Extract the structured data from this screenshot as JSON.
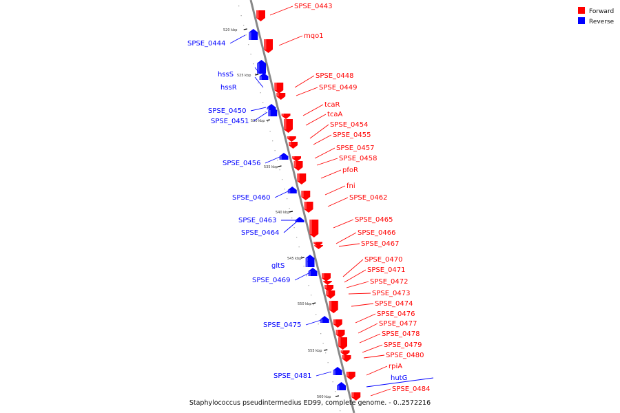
{
  "caption": "Staphylococcus pseudintermedius ED99, complete genome. - 0..2572216",
  "legend": [
    {
      "label": "Forward",
      "color": "#ff0000"
    },
    {
      "label": "Reverse",
      "color": "#0000ff"
    }
  ],
  "colors": {
    "forward": "#ff0000",
    "reverse": "#0000ff",
    "backbone": "#888888"
  },
  "ticks": [
    "520 kbp",
    "525 kbp",
    "530 kbp",
    "535 kbp",
    "540 kbp",
    "545 kbp",
    "550 kbp",
    "555 kbp",
    "560 kbp"
  ],
  "genes": [
    {
      "label": "SPSE_0443",
      "strand": "forward"
    },
    {
      "label": "mqo1",
      "strand": "forward"
    },
    {
      "label": "SPSE_0444",
      "strand": "reverse"
    },
    {
      "label": "hssS",
      "strand": "reverse"
    },
    {
      "label": "hssR",
      "strand": "reverse"
    },
    {
      "label": "SPSE_0448",
      "strand": "forward"
    },
    {
      "label": "SPSE_0449",
      "strand": "forward"
    },
    {
      "label": "tcaR",
      "strand": "forward"
    },
    {
      "label": "SPSE_0450",
      "strand": "reverse"
    },
    {
      "label": "SPSE_0451",
      "strand": "reverse"
    },
    {
      "label": "tcaA",
      "strand": "forward"
    },
    {
      "label": "SPSE_0454",
      "strand": "forward"
    },
    {
      "label": "SPSE_0455",
      "strand": "forward"
    },
    {
      "label": "SPSE_0457",
      "strand": "forward"
    },
    {
      "label": "SPSE_0458",
      "strand": "forward"
    },
    {
      "label": "SPSE_0456",
      "strand": "reverse"
    },
    {
      "label": "pfoR",
      "strand": "forward"
    },
    {
      "label": "fni",
      "strand": "forward"
    },
    {
      "label": "SPSE_0460",
      "strand": "reverse"
    },
    {
      "label": "SPSE_0462",
      "strand": "forward"
    },
    {
      "label": "SPSE_0465",
      "strand": "forward"
    },
    {
      "label": "SPSE_0463",
      "strand": "reverse"
    },
    {
      "label": "SPSE_0464",
      "strand": "reverse"
    },
    {
      "label": "SPSE_0466",
      "strand": "forward"
    },
    {
      "label": "SPSE_0467",
      "strand": "forward"
    },
    {
      "label": "gltS",
      "strand": "reverse"
    },
    {
      "label": "SPSE_0470",
      "strand": "forward"
    },
    {
      "label": "SPSE_0471",
      "strand": "forward"
    },
    {
      "label": "SPSE_0469",
      "strand": "reverse"
    },
    {
      "label": "SPSE_0472",
      "strand": "forward"
    },
    {
      "label": "SPSE_0473",
      "strand": "forward"
    },
    {
      "label": "SPSE_0474",
      "strand": "forward"
    },
    {
      "label": "SPSE_0476",
      "strand": "forward"
    },
    {
      "label": "SPSE_0475",
      "strand": "reverse"
    },
    {
      "label": "SPSE_0477",
      "strand": "forward"
    },
    {
      "label": "SPSE_0478",
      "strand": "forward"
    },
    {
      "label": "SPSE_0479",
      "strand": "forward"
    },
    {
      "label": "SPSE_0480",
      "strand": "forward"
    },
    {
      "label": "rpiA",
      "strand": "forward"
    },
    {
      "label": "SPSE_0481",
      "strand": "reverse"
    },
    {
      "label": "hutG",
      "strand": "reverse"
    },
    {
      "label": "SPSE_0484",
      "strand": "forward"
    }
  ]
}
